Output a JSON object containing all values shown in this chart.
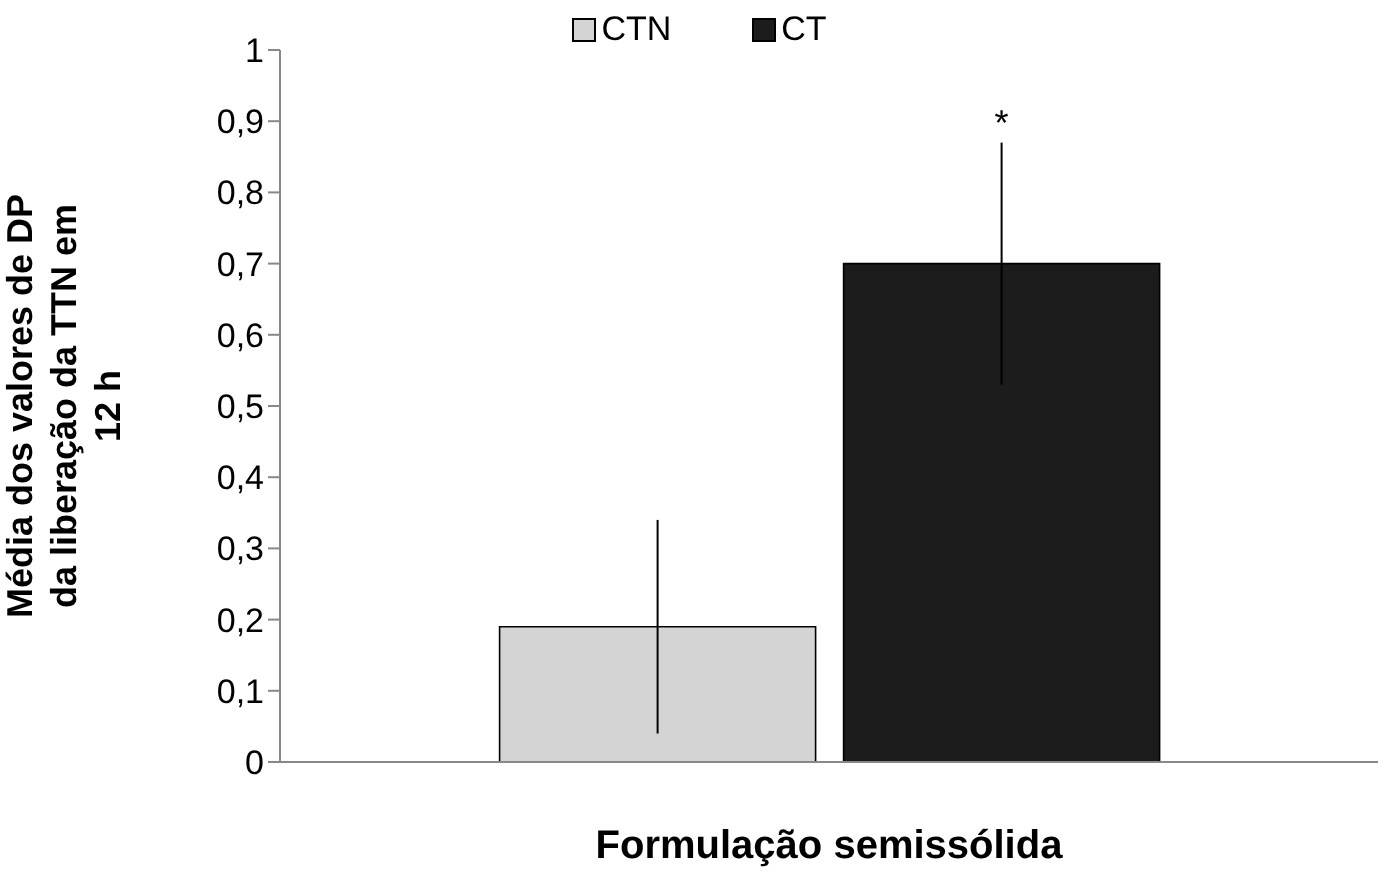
{
  "chart_data": {
    "type": "bar",
    "xlabel": "Formulação semissólida",
    "ylabel": "Média dos valores de DP da liberação da TTN em 12 h",
    "categories": [
      null
    ],
    "series": [
      {
        "name": "CTN",
        "color": "#d4d4d4",
        "values": [
          0.19
        ],
        "errors": [
          0.15
        ]
      },
      {
        "name": "CT",
        "color": "#1c1c1c",
        "values": [
          0.7
        ],
        "errors": [
          0.17
        ]
      }
    ],
    "ylim": [
      0,
      1
    ],
    "yticks": [
      0,
      {
        "value": 0.1,
        "label": "0,1"
      },
      {
        "value": 0.2,
        "label": "0,2"
      },
      {
        "value": 0.3,
        "label": "0,3"
      },
      {
        "value": 0.4,
        "label": "0,4"
      },
      {
        "value": 0.5,
        "label": "0,5"
      },
      {
        "value": 0.6,
        "label": "0,6"
      },
      {
        "value": 0.7,
        "label": "0,7"
      },
      {
        "value": 0.8,
        "label": "0,8"
      },
      {
        "value": 0.9,
        "label": "0,9"
      },
      1
    ],
    "annotations": [
      {
        "text": "*",
        "y": 0.87
      }
    ],
    "grid": false,
    "legend": "top"
  }
}
